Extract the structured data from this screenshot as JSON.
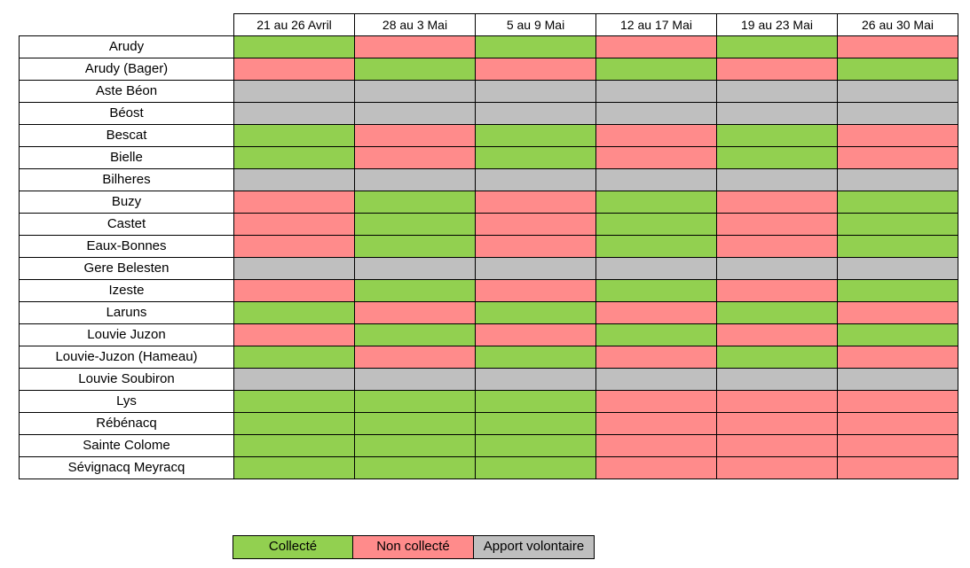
{
  "weeks": [
    "21 au 26 Avril",
    "28 au 3 Mai",
    "5 au 9 Mai",
    "12 au 17 Mai",
    "19 au 23 Mai",
    "26 au 30 Mai"
  ],
  "rows": [
    {
      "commune": "Arudy",
      "status": [
        "c",
        "n",
        "c",
        "n",
        "c",
        "n"
      ]
    },
    {
      "commune": "Arudy (Bager)",
      "status": [
        "n",
        "c",
        "n",
        "c",
        "n",
        "c"
      ]
    },
    {
      "commune": "Aste Béon",
      "status": [
        "a",
        "a",
        "a",
        "a",
        "a",
        "a"
      ]
    },
    {
      "commune": "Béost",
      "status": [
        "a",
        "a",
        "a",
        "a",
        "a",
        "a"
      ]
    },
    {
      "commune": "Bescat",
      "status": [
        "c",
        "n",
        "c",
        "n",
        "c",
        "n"
      ]
    },
    {
      "commune": "Bielle",
      "status": [
        "c",
        "n",
        "c",
        "n",
        "c",
        "n"
      ]
    },
    {
      "commune": "Bilheres",
      "status": [
        "a",
        "a",
        "a",
        "a",
        "a",
        "a"
      ]
    },
    {
      "commune": "Buzy",
      "status": [
        "n",
        "c",
        "n",
        "c",
        "n",
        "c"
      ]
    },
    {
      "commune": "Castet",
      "status": [
        "n",
        "c",
        "n",
        "c",
        "n",
        "c"
      ]
    },
    {
      "commune": "Eaux-Bonnes",
      "status": [
        "n",
        "c",
        "n",
        "c",
        "n",
        "c"
      ]
    },
    {
      "commune": "Gere Belesten",
      "status": [
        "a",
        "a",
        "a",
        "a",
        "a",
        "a"
      ]
    },
    {
      "commune": "Izeste",
      "status": [
        "n",
        "c",
        "n",
        "c",
        "n",
        "c"
      ]
    },
    {
      "commune": "Laruns",
      "status": [
        "c",
        "n",
        "c",
        "n",
        "c",
        "n"
      ]
    },
    {
      "commune": "Louvie Juzon",
      "status": [
        "n",
        "c",
        "n",
        "c",
        "n",
        "c"
      ]
    },
    {
      "commune": "Louvie-Juzon (Hameau)",
      "status": [
        "c",
        "n",
        "c",
        "n",
        "c",
        "n"
      ]
    },
    {
      "commune": "Louvie Soubiron",
      "status": [
        "a",
        "a",
        "a",
        "a",
        "a",
        "a"
      ]
    },
    {
      "commune": "Lys",
      "status": [
        "c",
        "c",
        "c",
        "n",
        "n",
        "n"
      ]
    },
    {
      "commune": "Rébénacq",
      "status": [
        "c",
        "c",
        "c",
        "n",
        "n",
        "n"
      ]
    },
    {
      "commune": "Sainte Colome",
      "status": [
        "c",
        "c",
        "c",
        "n",
        "n",
        "n"
      ]
    },
    {
      "commune": "Sévignacq Meyracq",
      "status": [
        "c",
        "c",
        "c",
        "n",
        "n",
        "n"
      ]
    }
  ],
  "legend": {
    "collecte": "Collecté",
    "non_collecte": "Non collecté",
    "apport": "Apport volontaire"
  },
  "colors": {
    "collecte": "#92d050",
    "non_collecte": "#ff8b8b",
    "apport": "#bfbfbf"
  }
}
